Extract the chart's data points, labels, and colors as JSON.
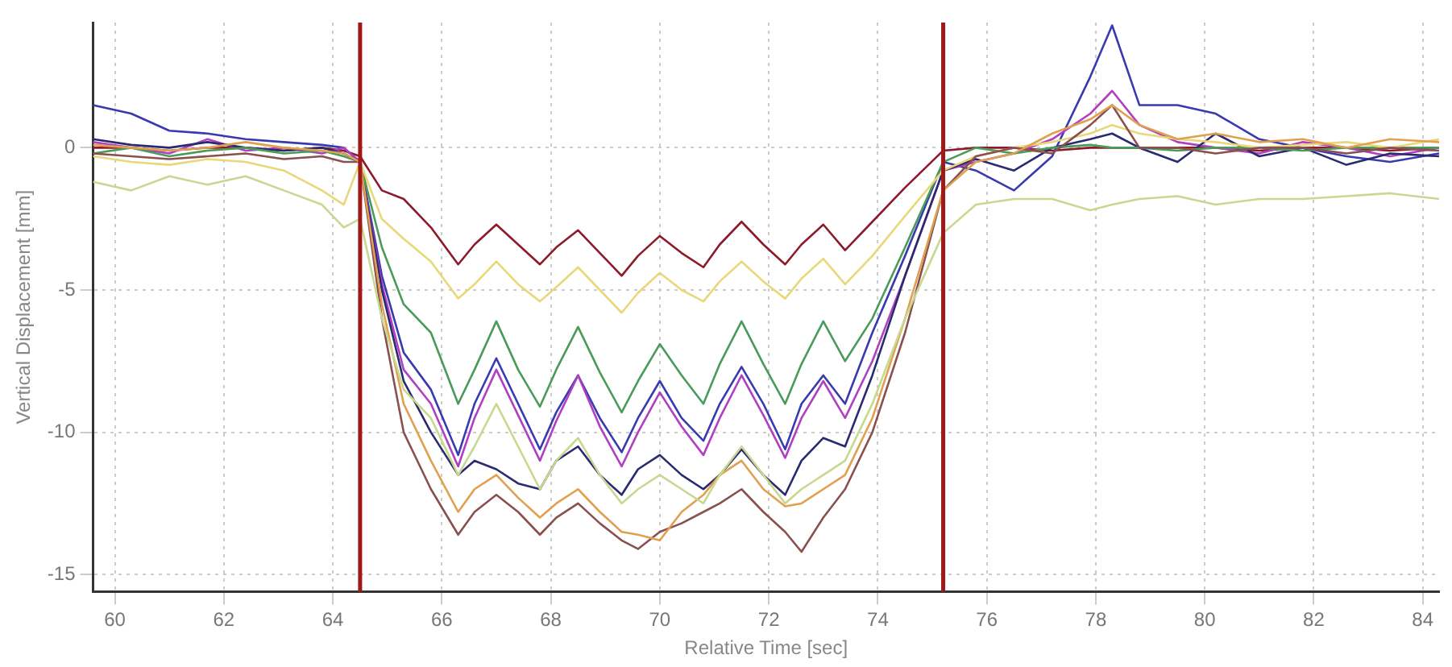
{
  "chart_data": {
    "type": "line",
    "xlabel": "Relative Time [sec]",
    "ylabel": "Vertical Displacement [mm]",
    "x": [
      59.6,
      60.3,
      61,
      61.7,
      62.4,
      63.1,
      63.8,
      64.2,
      64.5,
      64.9,
      65.3,
      65.8,
      66.3,
      66.6,
      67.0,
      67.4,
      67.8,
      68.1,
      68.5,
      68.9,
      69.3,
      69.6,
      70.0,
      70.4,
      70.8,
      71.1,
      71.5,
      71.9,
      72.3,
      72.6,
      73.0,
      73.4,
      73.9,
      74.5,
      75.2,
      75.8,
      76.5,
      77.2,
      77.9,
      78.3,
      78.8,
      79.5,
      80.2,
      81,
      81.8,
      82.6,
      83.4,
      84.3
    ],
    "xlim": [
      59.6,
      84.3
    ],
    "ylim": [
      -15.6,
      4.4
    ],
    "xticks": [
      60,
      62,
      64,
      66,
      68,
      70,
      72,
      74,
      76,
      78,
      80,
      82,
      84
    ],
    "yticks": [
      -15,
      -10,
      -5,
      0
    ],
    "grid": true,
    "marker": "none",
    "line_style": "solid",
    "ref_lines": [
      {
        "axis": "x",
        "value": 64.5,
        "color": "#a01818"
      },
      {
        "axis": "x",
        "value": 75.2,
        "color": "#a01818"
      }
    ],
    "series": [
      {
        "color": "#c8d890",
        "values": [
          -1.2,
          -1.5,
          -1.0,
          -1.3,
          -1.0,
          -1.5,
          -2.0,
          -2.8,
          -2.5,
          -6,
          -8.5,
          -9.5,
          -11.5,
          -10.5,
          -9.0,
          -10.5,
          -12.0,
          -11,
          -10.2,
          -11.5,
          -12.5,
          -12,
          -11.5,
          -12,
          -12.5,
          -11.5,
          -10.5,
          -11.5,
          -12.5,
          -12,
          -11.5,
          -11,
          -9,
          -6,
          -3,
          -2.0,
          -1.8,
          -1.8,
          -2.2,
          -2.0,
          -1.8,
          -1.7,
          -2.0,
          -1.8,
          -1.8,
          -1.7,
          -1.6,
          -1.8
        ]
      },
      {
        "color": "#e0a050",
        "values": [
          0.1,
          0,
          -0.1,
          0,
          0.2,
          0,
          -0.1,
          -0.2,
          -0.5,
          -5.5,
          -9.0,
          -11.0,
          -12.8,
          -12.0,
          -11.5,
          -12.3,
          -13.0,
          -12.5,
          -12.0,
          -12.8,
          -13.5,
          -13.6,
          -13.8,
          -12.8,
          -12.2,
          -11.5,
          -11.0,
          -12.0,
          -12.6,
          -12.5,
          -12.0,
          -11.5,
          -9.5,
          -6.0,
          -1.5,
          -0.5,
          -0.2,
          0.5,
          1.0,
          1.5,
          0.8,
          0.3,
          0.5,
          0.2,
          0.3,
          0,
          0.3,
          0.2
        ]
      },
      {
        "color": "#8a5050",
        "values": [
          -0.2,
          -0.3,
          -0.4,
          -0.3,
          -0.2,
          -0.4,
          -0.3,
          -0.5,
          -0.5,
          -6,
          -10,
          -12,
          -13.6,
          -12.8,
          -12.2,
          -12.8,
          -13.6,
          -13.0,
          -12.5,
          -13.2,
          -13.8,
          -14.1,
          -13.5,
          -13.2,
          -12.8,
          -12.5,
          -12.0,
          -12.8,
          -13.5,
          -14.2,
          -13.0,
          -12.0,
          -10.0,
          -6.5,
          -1.5,
          -0.3,
          0,
          -0.2,
          0.8,
          1.5,
          0,
          0,
          -0.2,
          0,
          0,
          -0.2,
          0,
          -0.1
        ]
      },
      {
        "color": "#e8d87a",
        "values": [
          -0.3,
          -0.5,
          -0.6,
          -0.4,
          -0.5,
          -0.8,
          -1.5,
          -2.0,
          -0.5,
          -2.5,
          -3.2,
          -4.0,
          -5.3,
          -4.8,
          -4.0,
          -4.8,
          -5.4,
          -4.9,
          -4.2,
          -5.0,
          -5.8,
          -5.1,
          -4.4,
          -5.0,
          -5.4,
          -4.7,
          -4.0,
          -4.7,
          -5.3,
          -4.6,
          -3.9,
          -4.8,
          -3.8,
          -2.4,
          -0.8,
          -0.3,
          0,
          0.2,
          0.5,
          0.8,
          0.5,
          0.3,
          0.2,
          0,
          0.1,
          0.2,
          0,
          0.3
        ]
      },
      {
        "color": "#4a9a5a",
        "values": [
          -0.2,
          0,
          -0.3,
          -0.1,
          0,
          -0.2,
          -0.1,
          -0.3,
          -0.5,
          -3.5,
          -5.5,
          -6.5,
          -9.0,
          -7.8,
          -6.1,
          -7.8,
          -9.1,
          -7.8,
          -6.3,
          -7.9,
          -9.3,
          -8.2,
          -6.9,
          -8.0,
          -9.0,
          -7.6,
          -6.1,
          -7.6,
          -9.0,
          -7.6,
          -6.1,
          -7.5,
          -6.0,
          -3.5,
          -0.5,
          0,
          -0.2,
          0,
          0.1,
          0,
          0,
          -0.1,
          0,
          0,
          -0.1,
          0,
          0,
          0
        ]
      },
      {
        "color": "#2a2a70",
        "values": [
          0.3,
          0.1,
          0,
          0.2,
          0,
          -0.1,
          0,
          -0.2,
          -0.5,
          -5,
          -8.2,
          -10,
          -11.5,
          -11.0,
          -11.3,
          -11.8,
          -12.0,
          -11.0,
          -10.5,
          -11.5,
          -12.2,
          -11.3,
          -10.8,
          -11.5,
          -12.0,
          -11.5,
          -10.6,
          -11.5,
          -12.2,
          -11.0,
          -10.2,
          -10.5,
          -8.0,
          -4.5,
          -0.8,
          -0.4,
          -0.8,
          0,
          0.3,
          0.5,
          0,
          -0.5,
          0.5,
          -0.3,
          0,
          -0.6,
          -0.2,
          -0.3
        ]
      },
      {
        "color": "#b040c0",
        "values": [
          0.2,
          0,
          -0.2,
          0.3,
          -0.1,
          0,
          -0.2,
          0,
          -0.5,
          -4.8,
          -7.8,
          -9.0,
          -11.2,
          -9.5,
          -7.8,
          -9.4,
          -11.0,
          -9.6,
          -8.0,
          -9.8,
          -11.2,
          -10.0,
          -8.6,
          -9.8,
          -10.8,
          -9.5,
          -8.0,
          -9.4,
          -10.9,
          -9.5,
          -8.2,
          -9.5,
          -7.5,
          -4.5,
          -0.8,
          -0.5,
          -0.2,
          0.3,
          1.2,
          2.0,
          0.8,
          0.2,
          0,
          -0.2,
          0.2,
          0,
          -0.3,
          0
        ]
      },
      {
        "color": "#3a3ab0",
        "values": [
          1.5,
          1.2,
          0.6,
          0.5,
          0.3,
          0.2,
          0.1,
          0,
          -0.5,
          -4.5,
          -7.2,
          -8.5,
          -10.8,
          -9.0,
          -7.4,
          -9.0,
          -10.6,
          -9.3,
          -8.0,
          -9.5,
          -10.7,
          -9.5,
          -8.2,
          -9.5,
          -10.3,
          -9.0,
          -7.7,
          -9.0,
          -10.6,
          -9.0,
          -8.0,
          -9.0,
          -6.5,
          -3.8,
          -0.5,
          -0.8,
          -1.5,
          -0.3,
          2.5,
          4.3,
          1.5,
          1.5,
          1.2,
          0.3,
          0,
          -0.3,
          -0.5,
          -0.2
        ]
      },
      {
        "color": "#8b1a2b",
        "values": [
          0,
          0,
          -0.1,
          0,
          0,
          -0.1,
          0,
          -0.1,
          -0.3,
          -1.5,
          -1.8,
          -2.8,
          -4.1,
          -3.4,
          -2.7,
          -3.4,
          -4.1,
          -3.5,
          -2.9,
          -3.7,
          -4.5,
          -3.8,
          -3.1,
          -3.7,
          -4.2,
          -3.4,
          -2.6,
          -3.4,
          -4.1,
          -3.4,
          -2.7,
          -3.6,
          -2.6,
          -1.4,
          -0.1,
          0,
          0,
          -0.1,
          0,
          0,
          0,
          0,
          0,
          -0.1,
          0,
          0,
          -0.1,
          0
        ]
      }
    ]
  }
}
